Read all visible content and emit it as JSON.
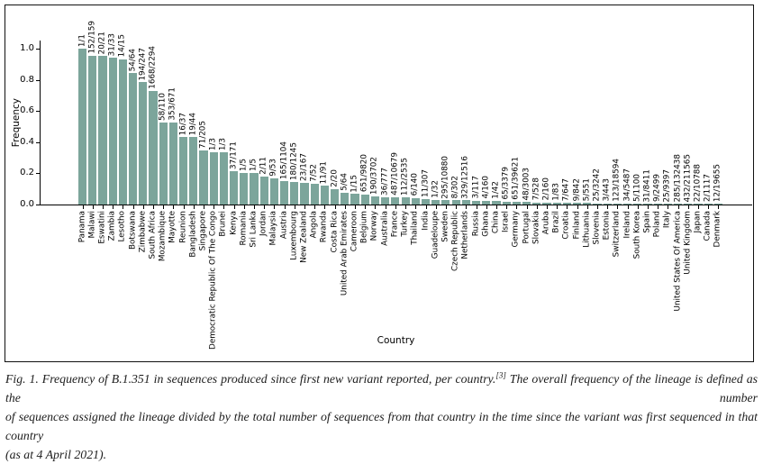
{
  "chart_data": {
    "type": "bar",
    "title": "",
    "xlabel": "Country",
    "ylabel": "Frequency",
    "ylim": [
      0,
      1.05
    ],
    "yticks": [
      0.0,
      0.2,
      0.4,
      0.6,
      0.8,
      1.0
    ],
    "grid": false,
    "bar_color": "#7ca59b",
    "categories": [
      "Panama",
      "Malawi",
      "Eswatini",
      "Zambia",
      "Lesotho",
      "Botswana",
      "Zimbabwe",
      "South Africa",
      "Mozambique",
      "Mayotte",
      "Reunion",
      "Bangladesh",
      "Singapore",
      "Democratic Republic Of The Congo",
      "Brunei",
      "Kenya",
      "Romania",
      "Sri Lanka",
      "Jordan",
      "Malaysia",
      "Austria",
      "Luxembourg",
      "New Zealand",
      "Angola",
      "Rwanda",
      "Costa Rica",
      "United Arab Emirates",
      "Cameroon",
      "Belgium",
      "Norway",
      "Australia",
      "France",
      "Turkey",
      "Thailand",
      "India",
      "Guadeloupe",
      "Sweden",
      "Czech Republic",
      "Netherlands",
      "Russia",
      "Ghana",
      "China",
      "Israel",
      "Germany",
      "Portugal",
      "Slovakia",
      "Aruba",
      "Brazil",
      "Croatia",
      "Finland",
      "Lithuania",
      "Slovenia",
      "Estonia",
      "Switzerland",
      "Ireland",
      "South Korea",
      "Spain",
      "Poland",
      "Italy",
      "United States Of America",
      "United Kingdom",
      "Japan",
      "Canada",
      "Denmark"
    ],
    "bar_labels": [
      "1/1",
      "152/159",
      "20/21",
      "31/33",
      "14/15",
      "54/64",
      "194/247",
      "1668/2294",
      "58/110",
      "353/671",
      "16/37",
      "19/44",
      "71/205",
      "1/3",
      "1/3",
      "37/171",
      "1/5",
      "1/5",
      "2/11",
      "9/53",
      "165/1104",
      "180/1245",
      "23/167",
      "7/52",
      "11/91",
      "2/20",
      "5/64",
      "1/15",
      "651/9820",
      "190/3702",
      "36/777",
      "487/10679",
      "112/2535",
      "6/140",
      "11/307",
      "1/32",
      "295/10880",
      "8/302",
      "329/12516",
      "3/117",
      "4/160",
      "1/42",
      "65/3379",
      "651/39621",
      "48/3003",
      "7/528",
      "2/160",
      "1/83",
      "7/647",
      "9/842",
      "5/551",
      "25/3242",
      "3/443",
      "123/18594",
      "34/5487",
      "5/1100",
      "31/8411",
      "9/2499",
      "25/9397",
      "285/132438",
      "432/211565",
      "22/10788",
      "2/1117",
      "12/19655"
    ],
    "values": [
      1.0,
      0.956,
      0.9524,
      0.9394,
      0.9333,
      0.8438,
      0.7854,
      0.7271,
      0.5273,
      0.5261,
      0.4324,
      0.4318,
      0.3463,
      0.3333,
      0.3333,
      0.2164,
      0.2,
      0.2,
      0.1818,
      0.1698,
      0.1495,
      0.1446,
      0.1377,
      0.1346,
      0.1209,
      0.1,
      0.0781,
      0.0667,
      0.0663,
      0.0513,
      0.0463,
      0.0456,
      0.0442,
      0.0429,
      0.0358,
      0.0313,
      0.0271,
      0.0265,
      0.0263,
      0.0256,
      0.025,
      0.0238,
      0.0192,
      0.0164,
      0.016,
      0.0133,
      0.0125,
      0.012,
      0.0108,
      0.0107,
      0.0091,
      0.0077,
      0.0068,
      0.0066,
      0.0062,
      0.0045,
      0.0037,
      0.0036,
      0.0027,
      0.0022,
      0.002,
      0.002,
      0.0018,
      0.0006
    ]
  },
  "caption": {
    "line1_pre": "Fig. 1. Frequency of B.1.351 in sequences produced since first new variant reported, per country.",
    "line1_sup": "[3]",
    "line1_post": " The overall frequency of the lineage is defined as the number",
    "line2": "of sequences assigned the lineage divided by the total number of sequences from that country in the time since the variant was first sequenced in that country",
    "line3": "(as at 4 April 2021)."
  }
}
